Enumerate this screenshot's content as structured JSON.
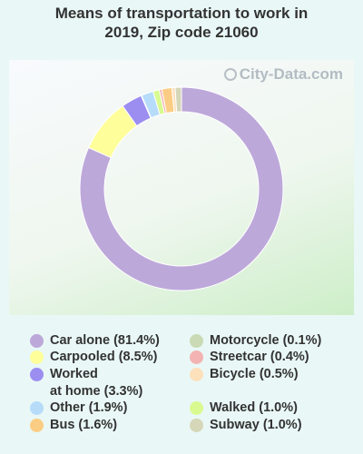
{
  "title": {
    "line1": "Means of transportation to work in",
    "line2": "2019, Zip code 21060"
  },
  "watermark": {
    "text": "City-Data.com",
    "icon": "city-data-logo-icon"
  },
  "chart_data": {
    "type": "pie",
    "style": "donut",
    "title": "Means of transportation to work in 2019, Zip code 21060",
    "start_angle_deg": 0,
    "slice_order": [
      "Car alone",
      "Carpooled",
      "Worked at home",
      "Motorcycle",
      "Other",
      "Walked",
      "Streetcar",
      "Bus",
      "Bicycle",
      "Subway"
    ],
    "slices": [
      {
        "label": "Car alone",
        "value": 81.4,
        "color": "#bda8da"
      },
      {
        "label": "Carpooled",
        "value": 8.5,
        "color": "#fefe9a"
      },
      {
        "label": "Worked at home",
        "value": 3.3,
        "color": "#9b8ef0"
      },
      {
        "label": "Motorcycle",
        "value": 0.1,
        "color": "#c9dab4"
      },
      {
        "label": "Other",
        "value": 1.9,
        "color": "#b6dcfa"
      },
      {
        "label": "Walked",
        "value": 1.0,
        "color": "#d8fa90"
      },
      {
        "label": "Streetcar",
        "value": 0.4,
        "color": "#f4b3b3"
      },
      {
        "label": "Bus",
        "value": 1.6,
        "color": "#fbcd84"
      },
      {
        "label": "Bicycle",
        "value": 0.5,
        "color": "#fde0bc"
      },
      {
        "label": "Subway",
        "value": 1.0,
        "color": "#d6d6b8"
      }
    ],
    "legend_placement": "bottom"
  },
  "legend": {
    "items": [
      {
        "lines": [
          "Car alone (81.4%)"
        ],
        "color": "#bda8da"
      },
      {
        "lines": [
          "Carpooled (8.5%)"
        ],
        "color": "#fefe9a"
      },
      {
        "lines": [
          "Worked",
          "at home (3.3%)"
        ],
        "color": "#9b8ef0"
      },
      {
        "lines": [
          "Other (1.9%)"
        ],
        "color": "#b6dcfa"
      },
      {
        "lines": [
          "Bus (1.6%)"
        ],
        "color": "#fbcd84"
      },
      {
        "lines": [
          "Motorcycle (0.1%)"
        ],
        "color": "#c9dab4"
      },
      {
        "lines": [
          "Streetcar (0.4%)"
        ],
        "color": "#f4b3b3"
      },
      {
        "lines": [
          "Bicycle (0.5%)"
        ],
        "color": "#fde0bc"
      },
      {
        "lines": [
          "Walked (1.0%)"
        ],
        "color": "#d8fa90"
      },
      {
        "lines": [
          "Subway (1.0%)"
        ],
        "color": "#d6d6b8"
      }
    ]
  }
}
